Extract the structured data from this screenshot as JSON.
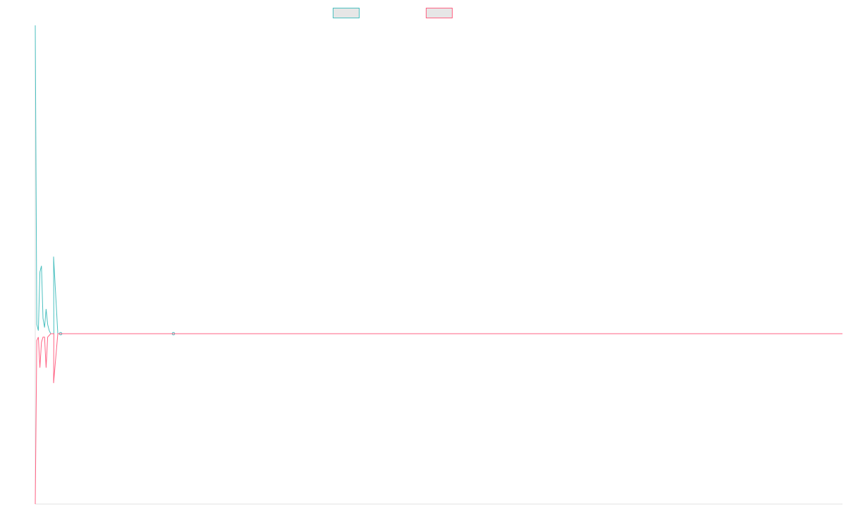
{
  "chart_data": {
    "type": "line",
    "title": "",
    "xlabel": "",
    "ylabel": "",
    "grid": false,
    "legend_position": "top-center",
    "ylim": [
      -1,
      1
    ],
    "x": [
      0,
      1,
      2,
      3,
      4,
      5,
      6,
      7,
      8,
      9,
      10,
      11,
      12,
      13,
      14,
      15,
      16,
      17,
      18,
      19,
      20,
      21,
      22,
      23,
      24,
      25,
      26,
      27,
      28,
      29,
      30,
      31,
      32,
      33,
      34,
      35,
      36,
      37,
      38,
      39,
      40,
      41,
      42,
      43,
      44,
      45,
      46,
      47,
      48,
      49,
      50
    ],
    "series": [
      {
        "name": "",
        "color": "#4bc0c0",
        "values": [
          1.0,
          0.03,
          0.01,
          0.2,
          0.22,
          0.05,
          0.02,
          0.08,
          0.03,
          0.01,
          0.0,
          0.0,
          0.0,
          0.25,
          0.0,
          0.0,
          0.0,
          0.0,
          0.0,
          0.0,
          0.0,
          0.0,
          0.0,
          0.0,
          0.0,
          0.0,
          0.0,
          0.0,
          0.0,
          0.0,
          0.0,
          0.0,
          0.0,
          0.0,
          0.0,
          0.0,
          0.0,
          0.0,
          0.0,
          0.0,
          0.0,
          0.0,
          0.0,
          0.0,
          0.0,
          0.0,
          0.0,
          0.0,
          0.0,
          0.0,
          0.0
        ],
        "point_markers_at": [
          15,
          84
        ]
      },
      {
        "name": "",
        "color": "#ff6384",
        "values": [
          -1.0,
          -0.04,
          -0.02,
          -0.2,
          -0.05,
          -0.02,
          -0.02,
          -0.2,
          -0.02,
          -0.01,
          -0.0,
          -0.0,
          -0.0,
          -0.29,
          -0.0,
          -0.0,
          -0.0,
          -0.0,
          -0.0,
          -0.0,
          -0.0,
          -0.0,
          -0.0,
          -0.0,
          -0.0,
          -0.0,
          -0.0,
          -0.0,
          -0.0,
          -0.0,
          -0.0,
          -0.0,
          -0.0,
          -0.0,
          -0.0,
          -0.0,
          -0.0,
          -0.0,
          -0.0,
          -0.0,
          -0.0,
          -0.0,
          -0.0,
          -0.0,
          -0.0,
          -0.0,
          -0.0,
          -0.0,
          -0.0,
          -0.0,
          -0.0
        ]
      }
    ]
  }
}
